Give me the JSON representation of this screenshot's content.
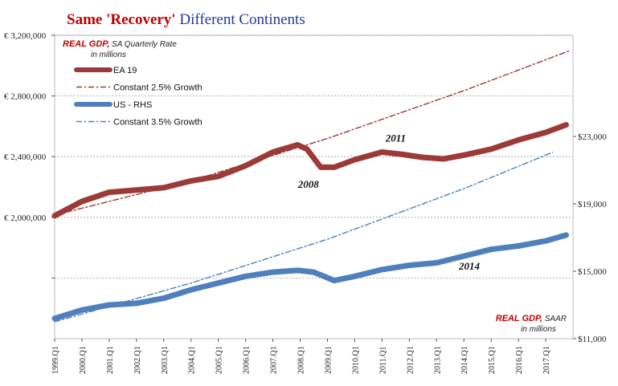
{
  "chart_data": {
    "type": "line",
    "title": {
      "part1": "Same 'Recovery'",
      "part2": " Different Continents",
      "color1": "#c00000",
      "color2": "#1f3a93"
    },
    "left_axis": {
      "label_strong": "REAL GDP,",
      "label_rest": " SA Quarterly Rate",
      "label_line2": "in millions",
      "range": [
        1200000,
        3200000
      ],
      "ticks": [
        2000000,
        2400000,
        2800000,
        3200000
      ],
      "tick_labels": [
        "€ 2,000,000",
        "€ 2,400,000",
        "€ 2,800,000",
        "€ 3,200,000"
      ]
    },
    "right_axis": {
      "label_strong": "REAL GDP,",
      "label_rest": " SAAR",
      "label_line2": "in millions",
      "range": [
        11000,
        29000
      ],
      "ticks": [
        11000,
        15000,
        19000,
        23000
      ],
      "tick_labels": [
        "$11,000",
        "$15,000",
        "$19,000",
        "$23,000"
      ]
    },
    "x_ticks": [
      "1999.Q1",
      "2000.Q1",
      "2001.Q1",
      "2002.Q1",
      "2003.Q1",
      "2004.Q1",
      "2005.Q1",
      "2006.Q1",
      "2007.Q1",
      "2008.Q1",
      "2009.Q1",
      "2010.Q1",
      "2011.Q1",
      "2012.Q1",
      "2013.Q1",
      "2014.Q1",
      "2015.Q1",
      "2016.Q1",
      "2017.Q1"
    ],
    "x_range": [
      1999.0,
      2018.0
    ],
    "grid": true,
    "legend_position": "top-left",
    "series": [
      {
        "name": "EA 19",
        "axis": "left",
        "style": "thick",
        "color": "#9b3a36",
        "x": [
          1999.0,
          2000.0,
          2001.0,
          2002.0,
          2003.0,
          2004.0,
          2005.0,
          2006.0,
          2007.0,
          2007.9,
          2008.25,
          2008.5,
          2008.75,
          2009.25,
          2010.0,
          2011.0,
          2011.75,
          2012.5,
          2013.25,
          2014.0,
          2015.0,
          2016.0,
          2017.0,
          2017.75
        ],
        "values": [
          2010000,
          2105000,
          2165000,
          2180000,
          2195000,
          2240000,
          2270000,
          2340000,
          2430000,
          2478000,
          2450000,
          2390000,
          2330000,
          2330000,
          2380000,
          2430000,
          2415000,
          2395000,
          2385000,
          2410000,
          2450000,
          2510000,
          2560000,
          2610000
        ]
      },
      {
        "name": "Constant 2.5% Growth",
        "axis": "left",
        "style": "dashdot",
        "color": "#9b3a36",
        "x": [
          1999.0,
          2004.0,
          2009.0,
          2014.0,
          2017.9
        ],
        "values": [
          2015000,
          2240000,
          2520000,
          2835000,
          3100000
        ]
      },
      {
        "name": "US - RHS",
        "axis": "right",
        "style": "thick",
        "color": "#4f7fbc",
        "x": [
          1999.0,
          2000.0,
          2001.0,
          2002.0,
          2003.0,
          2004.0,
          2005.0,
          2006.0,
          2007.0,
          2007.9,
          2008.5,
          2009.25,
          2010.0,
          2011.0,
          2012.0,
          2013.0,
          2014.0,
          2015.0,
          2016.0,
          2017.0,
          2017.75
        ],
        "values": [
          12200,
          12700,
          13000,
          13100,
          13400,
          13900,
          14300,
          14700,
          14950,
          15050,
          14950,
          14450,
          14700,
          15100,
          15350,
          15500,
          15900,
          16300,
          16500,
          16800,
          17150
        ]
      },
      {
        "name": "Constant 3.5% Growth",
        "axis": "right",
        "style": "dashdot",
        "color": "#4f7fbc",
        "x": [
          1999.0,
          2004.0,
          2009.0,
          2014.0,
          2017.25
        ],
        "values": [
          12000,
          14300,
          16900,
          19900,
          22050
        ]
      }
    ],
    "annotations": [
      {
        "text": "2008",
        "x": 2008.3,
        "axis": "left",
        "y": 2195000
      },
      {
        "text": "2011",
        "x": 2011.5,
        "axis": "left",
        "y": 2500000
      },
      {
        "text": "2014",
        "x": 2014.2,
        "axis": "right",
        "y": 15100
      }
    ]
  }
}
